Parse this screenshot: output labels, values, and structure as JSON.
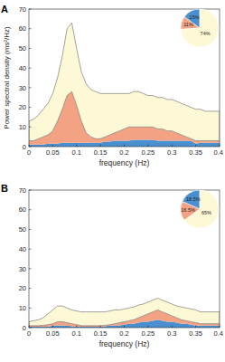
{
  "chart_data": [
    {
      "type": "area",
      "title": "A",
      "stacked": true,
      "xlabel": "frequency (Hz)",
      "ylabel": "Power spectral density (ms²/Hz)",
      "x": [
        0,
        0.01,
        0.02,
        0.03,
        0.04,
        0.05,
        0.06,
        0.07,
        0.08,
        0.09,
        0.1,
        0.11,
        0.12,
        0.13,
        0.14,
        0.15,
        0.16,
        0.17,
        0.18,
        0.19,
        0.2,
        0.21,
        0.22,
        0.23,
        0.24,
        0.25,
        0.26,
        0.27,
        0.28,
        0.29,
        0.3,
        0.31,
        0.32,
        0.33,
        0.34,
        0.35,
        0.36,
        0.37,
        0.38,
        0.39,
        0.4
      ],
      "series": [
        {
          "color": "#4a8fd0",
          "values": [
            1,
            1,
            1,
            1,
            1.5,
            1.5,
            1.5,
            2,
            2,
            2,
            2,
            2,
            2,
            2,
            2,
            2,
            2.5,
            2.5,
            3,
            3,
            3,
            3,
            3.5,
            3.5,
            3.5,
            3.5,
            3.5,
            3,
            3,
            3,
            3,
            3,
            3,
            3,
            3,
            1.5,
            2,
            2,
            2,
            2,
            2
          ]
        },
        {
          "color": "#f4a284",
          "values": [
            2,
            2,
            3,
            4,
            4.5,
            6.5,
            11.5,
            17,
            24,
            26,
            19,
            11,
            5,
            3,
            2,
            2,
            2.5,
            3.5,
            4,
            5,
            6,
            7,
            6.5,
            6.5,
            6.5,
            6.5,
            6.5,
            6,
            6,
            5,
            5,
            4,
            3,
            2,
            1,
            1.5,
            1,
            1,
            1,
            1,
            1
          ]
        },
        {
          "color": "#fdf9d6",
          "values": [
            10,
            11,
            12,
            14,
            16,
            19,
            22,
            27,
            34,
            35,
            29,
            25,
            25,
            24,
            24,
            23,
            22,
            21,
            20,
            19,
            18,
            17,
            18,
            18,
            17,
            16,
            16,
            16,
            16,
            16,
            16,
            16,
            16,
            16,
            16,
            16,
            16,
            15,
            15,
            15,
            15
          ]
        }
      ],
      "xlim": [
        0,
        0.4
      ],
      "xticks": [
        0,
        0.05,
        0.1,
        0.15,
        0.2,
        0.25,
        0.3,
        0.35,
        0.4
      ],
      "ylim": [
        0,
        70
      ],
      "yticks": [
        0,
        10,
        20,
        30,
        40,
        50,
        60,
        70
      ]
    },
    {
      "type": "pie",
      "values": [
        15,
        11,
        74
      ],
      "value_labels": [
        "15%",
        "11%",
        "74%"
      ],
      "colors": [
        "#4a8fd0",
        "#f4a284",
        "#fdf9d6"
      ],
      "data_labels": true
    },
    {
      "type": "area",
      "title": "B",
      "stacked": true,
      "xlabel": "frequency (Hz)",
      "x": [
        0,
        0.01,
        0.02,
        0.03,
        0.04,
        0.05,
        0.06,
        0.07,
        0.08,
        0.09,
        0.1,
        0.11,
        0.12,
        0.13,
        0.14,
        0.15,
        0.16,
        0.17,
        0.18,
        0.19,
        0.2,
        0.21,
        0.22,
        0.23,
        0.24,
        0.25,
        0.26,
        0.27,
        0.28,
        0.29,
        0.3,
        0.31,
        0.32,
        0.33,
        0.34,
        0.35,
        0.36,
        0.37,
        0.38,
        0.39,
        0.4
      ],
      "series": [
        {
          "color": "#4a8fd0",
          "values": [
            0.5,
            0.5,
            0.5,
            0.5,
            0.5,
            1,
            1,
            1,
            1,
            0.7,
            0.5,
            0.5,
            0.5,
            0.5,
            0.5,
            0.5,
            0.7,
            1,
            1,
            1.2,
            1.5,
            2,
            2,
            2.5,
            3,
            3,
            3.5,
            4,
            3.5,
            3,
            3,
            2.5,
            2,
            2,
            1.5,
            1,
            1,
            1,
            1,
            1,
            1
          ]
        },
        {
          "color": "#f4a284",
          "values": [
            0.5,
            0.5,
            0.5,
            0.7,
            1,
            1,
            2,
            2,
            1.5,
            1.3,
            1,
            0.5,
            0.5,
            0.5,
            0.5,
            0.5,
            0.5,
            0.5,
            1,
            1.3,
            1.5,
            1.5,
            2,
            2.5,
            3,
            4,
            4.5,
            5,
            4.5,
            4,
            3,
            2.5,
            2,
            1.5,
            1.5,
            1.5,
            1,
            1,
            1,
            1,
            1
          ]
        },
        {
          "color": "#fdf9d6",
          "values": [
            2,
            2.5,
            3,
            3.8,
            5.5,
            7,
            8,
            8,
            7.5,
            7,
            7,
            7,
            7,
            7,
            7,
            7,
            6.8,
            7,
            7,
            6.5,
            6.5,
            6.5,
            6.5,
            6.5,
            6,
            6,
            6,
            6,
            6,
            6,
            6,
            6,
            6.5,
            6.5,
            6.5,
            6.5,
            6,
            6,
            6,
            6,
            6
          ]
        }
      ],
      "xlim": [
        0,
        0.4
      ],
      "xticks": [
        0,
        0.05,
        0.1,
        0.15,
        0.2,
        0.25,
        0.3,
        0.35,
        0.4
      ],
      "ylim": [
        0,
        70
      ],
      "yticks": [
        0,
        10,
        20,
        30,
        40,
        50,
        60,
        70
      ]
    },
    {
      "type": "pie",
      "values": [
        18.5,
        16.5,
        65
      ],
      "value_labels": [
        "18.5%",
        "16.5%",
        "65%"
      ],
      "colors": [
        "#4a8fd0",
        "#f4a284",
        "#fdf9d6"
      ],
      "data_labels": true
    }
  ]
}
